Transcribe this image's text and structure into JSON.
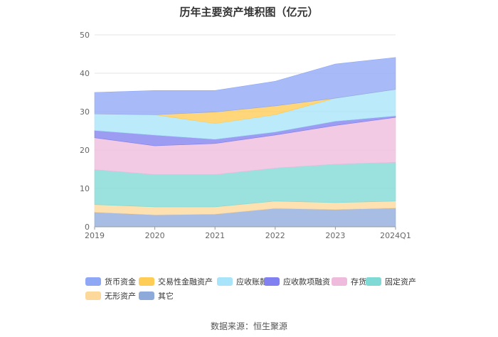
{
  "chart_data": {
    "type": "area",
    "stacked": true,
    "title": "历年主要资产堆积图（亿元）",
    "categories": [
      "2019",
      "2020",
      "2021",
      "2022",
      "2023",
      "2024Q1"
    ],
    "ylim": [
      0,
      50
    ],
    "yticks": [
      0,
      10,
      20,
      30,
      40,
      50
    ],
    "xlabel": "",
    "ylabel": "",
    "grid": true,
    "legend_position": "bottom",
    "series": [
      {
        "name": "其它",
        "color": "#8eaadb",
        "values": [
          3.8,
          3.1,
          3.3,
          4.8,
          4.5,
          4.9
        ]
      },
      {
        "name": "无形资产",
        "color": "#fcd89a",
        "values": [
          2.0,
          2.1,
          1.9,
          1.9,
          1.8,
          1.8
        ]
      },
      {
        "name": "固定资产",
        "color": "#7fdad6",
        "values": [
          9.1,
          8.4,
          8.4,
          8.6,
          10.0,
          10.1
        ]
      },
      {
        "name": "存货",
        "color": "#eebbdd",
        "values": [
          8.3,
          7.5,
          8.1,
          8.6,
          10.1,
          11.7
        ]
      },
      {
        "name": "应收款项融资",
        "color": "#8080f0",
        "values": [
          1.9,
          2.8,
          1.1,
          0.8,
          1.1,
          0.4
        ]
      },
      {
        "name": "应收账款",
        "color": "#a8e4fa",
        "values": [
          4.3,
          5.3,
          4.1,
          4.5,
          6.0,
          6.9
        ]
      },
      {
        "name": "交易性金融资产",
        "color": "#ffcc55",
        "values": [
          0,
          0,
          3.0,
          2.3,
          0,
          0
        ]
      },
      {
        "name": "货币资金",
        "color": "#8fa8f6",
        "values": [
          5.6,
          6.3,
          5.6,
          6.4,
          8.9,
          8.3
        ]
      }
    ]
  },
  "legend": [
    {
      "name": "货币资金",
      "color": "#8fa8f6"
    },
    {
      "name": "交易性金融资产",
      "color": "#ffcc55"
    },
    {
      "name": "应收账款",
      "color": "#a8e4fa"
    },
    {
      "name": "应收款项融资",
      "color": "#8080f0"
    },
    {
      "name": "存货",
      "color": "#eebbdd"
    },
    {
      "name": "固定资产",
      "color": "#7fdad6"
    },
    {
      "name": "无形资产",
      "color": "#fcd89a"
    },
    {
      "name": "其它",
      "color": "#8eaadb"
    }
  ],
  "source": "数据来源：恒生聚源"
}
